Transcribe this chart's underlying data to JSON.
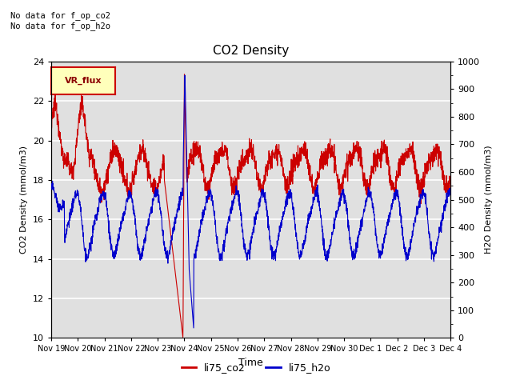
{
  "title": "CO2 Density",
  "xlabel": "Time",
  "ylabel_left": "CO2 Density (mmol/m3)",
  "ylabel_right": "H2O Density (mmol/m3)",
  "ylim_left": [
    10,
    24
  ],
  "ylim_right": [
    0,
    1000
  ],
  "yticks_left": [
    10,
    12,
    14,
    16,
    18,
    20,
    22,
    24
  ],
  "yticks_right": [
    0,
    100,
    200,
    300,
    400,
    500,
    600,
    700,
    800,
    900,
    1000
  ],
  "annotation_top_left": "No data for f_op_co2\nNo data for f_op_h2o",
  "legend_box_label": "VR_flux",
  "legend_entries": [
    "li75_co2",
    "li75_h2o"
  ],
  "legend_colors": [
    "#cc0000",
    "#0000cc"
  ],
  "line_color_co2": "#cc0000",
  "line_color_h2o": "#0000cc",
  "background_color": "#ffffff",
  "plot_bg_color": "#e0e0e0",
  "grid_color": "#ffffff",
  "x_tick_labels": [
    "Nov 19",
    "Nov 20",
    "Nov 21",
    "Nov 22",
    "Nov 23",
    "Nov 24",
    "Nov 25",
    "Nov 26",
    "Nov 27",
    "Nov 28",
    "Nov 29",
    "Nov 30",
    "Dec 1",
    "Dec 2",
    "Dec 3",
    "Dec 4"
  ],
  "vr_flux_facecolor": "#ffffbb",
  "vr_flux_edgecolor": "#cc0000",
  "vr_flux_textcolor": "#8b0000"
}
